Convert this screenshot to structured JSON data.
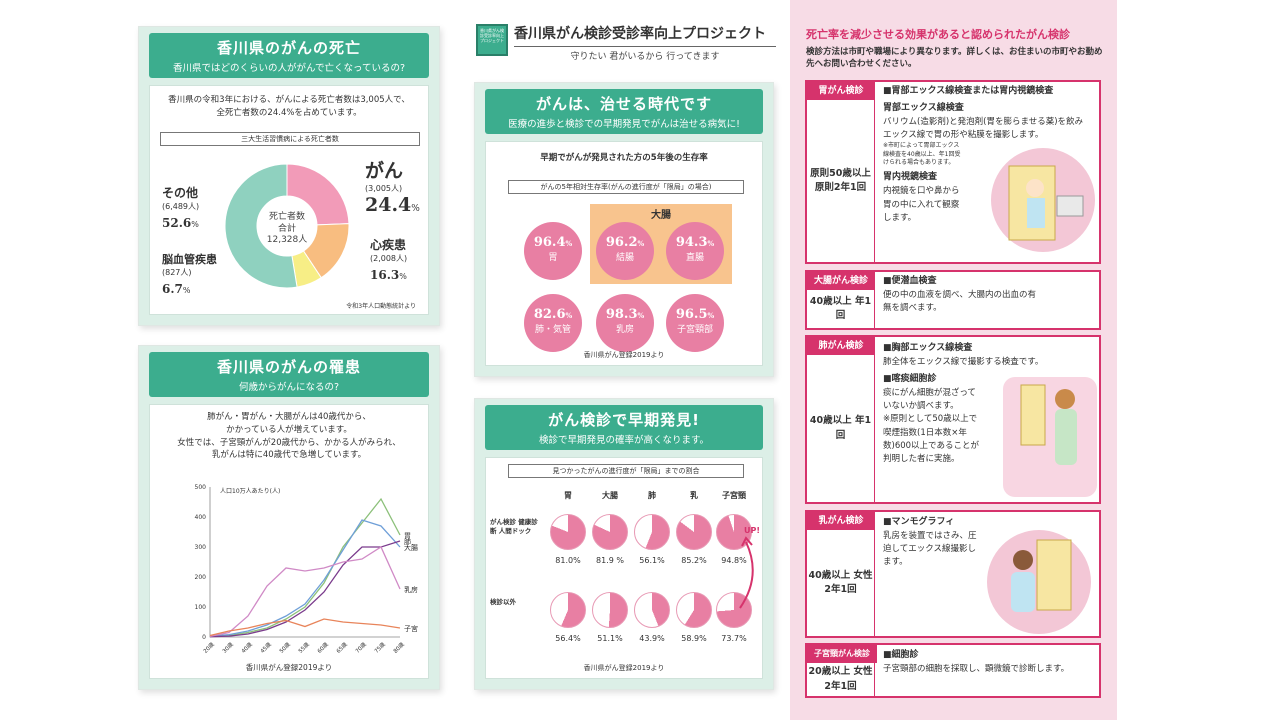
{
  "header": {
    "logo_text": "香川県がん検診受診率向上プロジェクト",
    "title": "香川県がん検診受診率向上プロジェクト",
    "subtitle": "守りたい 君がいるから 行ってきます"
  },
  "death_panel": {
    "title": "香川県のがんの死亡",
    "subtitle": "香川県ではどのくらいの人ががんで亡くなっているの?",
    "text1": "香川県の令和3年における、がんによる死亡者数は3,005人で、",
    "text2": "全死亡者数の24.4%を占めています。",
    "chart_box_label": "三大生活習慣病による死亡者数",
    "center_label1": "死亡者数",
    "center_label2": "合計",
    "center_total": "12,328人",
    "source": "令和3年人口動態統計より",
    "labels": [
      {
        "name": "がん",
        "count": "(3,005人)",
        "pct": "24.4",
        "unit": "%"
      },
      {
        "name": "心疾患",
        "count": "(2,008人)",
        "pct": "16.3",
        "unit": "%"
      },
      {
        "name": "脳血管疾患",
        "count": "(827人)",
        "pct": "6.7",
        "unit": "%"
      },
      {
        "name": "その他",
        "count": "(6,489人)",
        "pct": "52.6",
        "unit": "%"
      }
    ]
  },
  "incidence_panel": {
    "title": "香川県のがんの罹患",
    "subtitle": "何歳からがんになるの?",
    "text1": "肺がん・胃がん・大腸がんは40歳代から、",
    "text2": "かかっている人が増えています。",
    "text3": "女性では、子宮頸がんが20歳代から、かかる人がみられ、",
    "text4": "乳がんは特に40歳代で急増しています。",
    "ylabel": "人口10万人あたり(人)",
    "source": "香川県がん登録2019より"
  },
  "survival_panel": {
    "title": "がんは、治せる時代です",
    "subtitle": "医療の進歩と検診での早期発見でがんは治せる病気に!",
    "heading": "早期でがんが発見された方の5年後の生存率",
    "box_label": "がんの5年相対生存率(がんの進行度が「限局」の場合)",
    "group_label": "大腸",
    "items": [
      {
        "value": "96.4",
        "unit": "%",
        "label": "胃"
      },
      {
        "value": "96.2",
        "unit": "%",
        "label": "結腸"
      },
      {
        "value": "94.3",
        "unit": "%",
        "label": "直腸"
      },
      {
        "value": "82.6",
        "unit": "%",
        "label": "肺・気管"
      },
      {
        "value": "98.3",
        "unit": "%",
        "label": "乳房"
      },
      {
        "value": "96.5",
        "unit": "%",
        "label": "子宮頸部"
      }
    ],
    "source": "香川県がん登録2019より"
  },
  "detection_panel": {
    "title": "がん検診で早期発見!",
    "subtitle": "検診で早期発見の確率が高くなります。",
    "box_label": "見つかったがんの進行度が「限局」までの割合",
    "columns": [
      "胃",
      "大腸",
      "肺",
      "乳",
      "子宮頸"
    ],
    "row1_label": "がん検診 健康診断 人間ドック",
    "row2_label": "検診以外",
    "row1_values": [
      "81.0%",
      "81.9 %",
      "56.1%",
      "85.2%",
      "94.8%"
    ],
    "row1_fracs": [
      0.81,
      0.819,
      0.561,
      0.852,
      0.948
    ],
    "row2_values": [
      "56.4%",
      "51.1%",
      "43.9%",
      "58.9%",
      "73.7%"
    ],
    "row2_fracs": [
      0.564,
      0.511,
      0.439,
      0.589,
      0.737
    ],
    "up_label": "UP!",
    "source": "香川県がん登録2019より"
  },
  "chart_data": [
    {
      "type": "pie",
      "title": "三大生活習慣病による死亡者数",
      "categories": [
        "がん",
        "心疾患",
        "脳血管疾患",
        "その他"
      ],
      "values": [
        24.4,
        16.3,
        6.7,
        52.6
      ],
      "counts": [
        3005,
        2008,
        827,
        6489
      ],
      "colors": [
        "#f29bb8",
        "#f8bd80",
        "#f7ee86",
        "#8fd1bf"
      ]
    },
    {
      "type": "line",
      "xlabel": "",
      "ylabel": "人口10万人あたり(人)",
      "ylim": [
        0,
        500
      ],
      "yticks": [
        "500",
        "400",
        "300",
        "200",
        "100",
        "0"
      ],
      "categories": [
        "20歳",
        "30歳",
        "40歳",
        "45歳",
        "50歳",
        "55歳",
        "60歳",
        "65歳",
        "70歳",
        "75歳",
        "80歳"
      ],
      "series": [
        {
          "name": "胃",
          "color": "#8cc07a",
          "values": [
            2,
            5,
            15,
            30,
            60,
            100,
            180,
            300,
            380,
            460,
            340
          ]
        },
        {
          "name": "大腸",
          "color": "#6f9fd8",
          "values": [
            3,
            8,
            20,
            40,
            70,
            110,
            190,
            290,
            390,
            370,
            300
          ]
        },
        {
          "name": "肺",
          "color": "#7a3b8c",
          "values": [
            1,
            3,
            10,
            25,
            50,
            90,
            150,
            240,
            300,
            300,
            320
          ]
        },
        {
          "name": "乳房",
          "color": "#d08ac6",
          "values": [
            2,
            15,
            70,
            170,
            230,
            220,
            230,
            250,
            260,
            300,
            160
          ]
        },
        {
          "name": "子宮",
          "color": "#e8845a",
          "values": [
            5,
            20,
            30,
            45,
            55,
            35,
            60,
            50,
            45,
            40,
            30
          ]
        }
      ]
    }
  ],
  "screening": {
    "title": "死亡率を減少させる効果があると認められたがん検診",
    "note": "検診方法は市町や職場により異なります。詳しくは、お住まいの市町やお勤め先へお問い合わせください。",
    "sections": [
      {
        "name": "胃がん検診",
        "target": "原則50歳以上 原則2年1回",
        "heading": "■胃部エックス線検査または胃内視鏡検査",
        "sub1": "胃部エックス線検査",
        "body1": "バリウム(造影剤)と発泡剤(胃を膨らませる薬)を飲みエックス線で胃の形や粘膜を撮影します。",
        "note1": "※市町によって胃部エックス線検査を40歳以上、年1回受けられる場合もあります。",
        "sub2": "胃内視鏡検査",
        "body2": "内視鏡を口や鼻から胃の中に入れて観察します。"
      },
      {
        "name": "大腸がん検診",
        "target": "40歳以上 年1回",
        "heading": "■便潜血検査",
        "body1": "便の中の血液を調べ、大腸内の出血の有無を調べます。"
      },
      {
        "name": "肺がん検診",
        "target": "40歳以上 年1回",
        "heading": "■胸部エックス線検査",
        "body1": "肺全体をエックス線で撮影する検査です。",
        "sub2": "■喀痰細胞診",
        "body2": "痰にがん細胞が混ざっていないか調べます。",
        "note2": "※原則として50歳以上で喫煙指数(1日本数×年数)600以上であることが判明した者に実施。"
      },
      {
        "name": "乳がん検診",
        "target": "40歳以上 女性 2年1回",
        "heading": "■マンモグラフィ",
        "body1": "乳房を装置ではさみ、圧迫してエックス線撮影します。"
      },
      {
        "name": "子宮頸がん検診",
        "target": "20歳以上 女性 2年1回",
        "heading": "■細胞診",
        "body1": "子宮頸部の細胞を採取し、顕微鏡で診断します。"
      }
    ]
  }
}
